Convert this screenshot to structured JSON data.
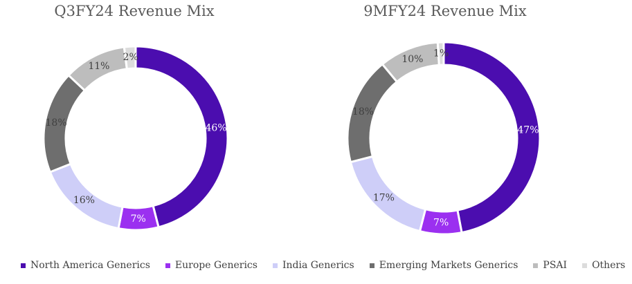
{
  "chart_data": [
    {
      "type": "pie",
      "style": "donut",
      "title": "Q3FY24 Revenue Mix",
      "categories": [
        "North America Generics",
        "Europe Generics",
        "India Generics",
        "Emerging Markets Generics",
        "PSAI",
        "Others"
      ],
      "values": [
        46,
        7,
        16,
        18,
        11,
        2
      ],
      "labels": [
        "46%",
        "7%",
        "16%",
        "18%",
        "11%",
        "2%"
      ]
    },
    {
      "type": "pie",
      "style": "donut",
      "title": "9MFY24 Revenue Mix",
      "categories": [
        "North America Generics",
        "Europe Generics",
        "India Generics",
        "Emerging Markets Generics",
        "PSAI",
        "Others"
      ],
      "values": [
        47,
        7,
        17,
        18,
        10,
        1
      ],
      "labels": [
        "47%",
        "7%",
        "17%",
        "18%",
        "10%",
        "1%"
      ]
    }
  ],
  "legend": {
    "position": "bottom",
    "items": [
      {
        "label": "North America Generics",
        "color": "#4B0DAF"
      },
      {
        "label": "Europe Generics",
        "color": "#9B30F0"
      },
      {
        "label": "India Generics",
        "color": "#CECEF8"
      },
      {
        "label": "Emerging Markets Generics",
        "color": "#6E6E6E"
      },
      {
        "label": "PSAI",
        "color": "#BDBDBD"
      },
      {
        "label": "Others",
        "color": "#DCDCDC"
      }
    ]
  },
  "label_colors": [
    "#ffffff",
    "#ffffff",
    "#404040",
    "#404040",
    "#404040",
    "#404040"
  ]
}
